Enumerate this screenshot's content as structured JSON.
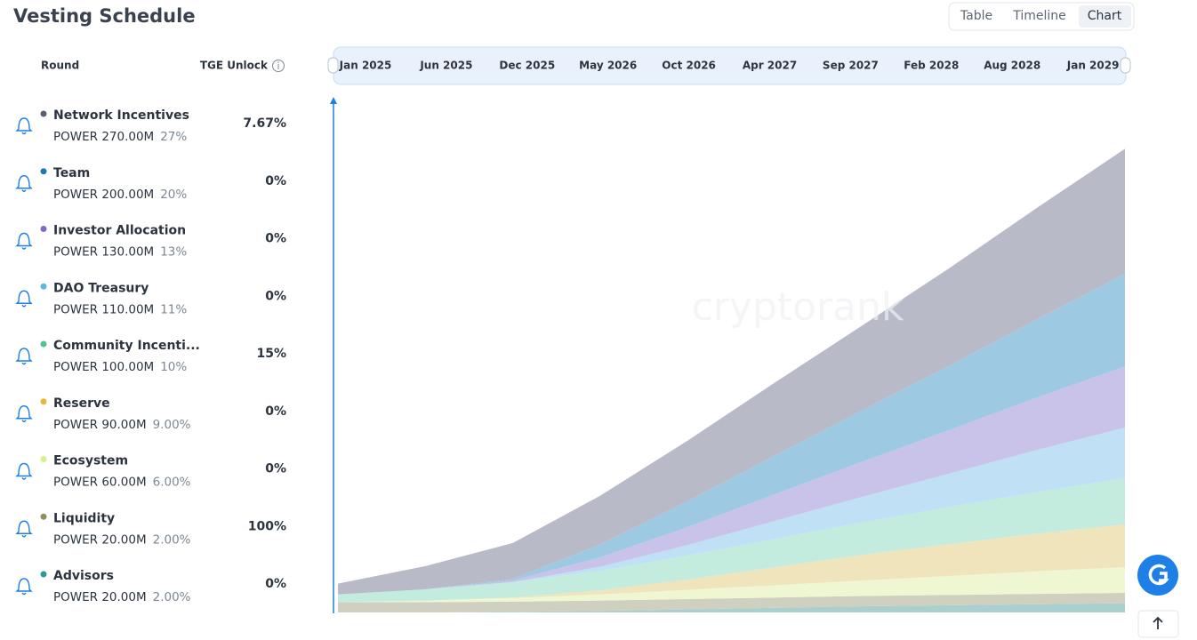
{
  "header": {
    "title": "Vesting Schedule",
    "tabs": [
      "Table",
      "Timeline",
      "Chart"
    ]
  },
  "table": {
    "headers": [
      "Round",
      "TGE Unlock"
    ],
    "rows": [
      {
        "amount": "POWER 270.00M",
        "share": "27%",
        "tge": "7.67%"
      },
      {
        "amount": "POWER 200.00M",
        "share": "20%",
        "tge": "0%"
      },
      {
        "amount": "POWER 130.00M",
        "share": "13%",
        "tge": "0%"
      },
      {
        "amount": "POWER 110.00M",
        "share": "11%",
        "tge": "0%"
      },
      {
        "amount": "POWER 100.00M",
        "share": "10%",
        "tge": "15%"
      },
      {
        "amount": "POWER 90.00M",
        "share": "9.00%",
        "tge": "0%"
      },
      {
        "amount": "POWER 60.00M",
        "share": "6.00%",
        "tge": "0%"
      },
      {
        "amount": "POWER 20.00M",
        "share": "2.00%",
        "tge": "100%"
      },
      {
        "amount": "POWER 20.00M",
        "share": "2.00%",
        "tge": "0%"
      }
    ]
  },
  "chart_data": {
    "type": "stacked-area",
    "categories": [
      "Jan 2025",
      "Jun 2025",
      "Dec 2025",
      "May 2026",
      "Oct 2026",
      "Apr 2027",
      "Sep 2027",
      "Feb 2028",
      "Aug 2028",
      "Jan 2029"
    ],
    "ylim": [
      0,
      1000
    ],
    "series": [
      {
        "name": "Network Incentives",
        "color": "#5a6070",
        "fill": "#b9bac8",
        "values": [
          21,
          45,
          70,
          95,
          118,
          142,
          165,
          190,
          217,
          243
        ]
      },
      {
        "name": "Team",
        "color": "#1f77b4",
        "fill": "#9dc9e3",
        "values": [
          0,
          0,
          3,
          25,
          50,
          75,
          100,
          125,
          152,
          180
        ]
      },
      {
        "name": "Investor Allocation",
        "color": "#7b6bc4",
        "fill": "#c9c3ea",
        "values": [
          0,
          0,
          3,
          18,
          35,
          52,
          68,
          85,
          102,
          119
        ]
      },
      {
        "name": "DAO Treasury",
        "color": "#5bb8e0",
        "fill": "#bfe0f5",
        "values": [
          0,
          0,
          0,
          8,
          20,
          35,
          50,
          65,
          82,
          98
        ]
      },
      {
        "name": "Community Incenti...",
        "color": "#4cc49a",
        "fill": "#c3ecdf",
        "values": [
          15,
          22,
          30,
          38,
          47,
          55,
          63,
          72,
          81,
          90
        ]
      },
      {
        "name": "Reserve",
        "color": "#e6b93c",
        "fill": "#f0e4bd",
        "values": [
          0,
          0,
          1,
          8,
          20,
          35,
          50,
          62,
          73,
          83
        ]
      },
      {
        "name": "Ecosystem",
        "color": "#d8ef8a",
        "fill": "#eef6d2",
        "values": [
          0,
          3,
          7,
          12,
          18,
          24,
          30,
          37,
          44,
          50
        ]
      },
      {
        "name": "Liquidity",
        "color": "#8d9160",
        "fill": "#cfd0c0",
        "values": [
          20,
          20,
          20,
          20,
          20,
          20,
          20,
          20,
          20,
          20
        ]
      },
      {
        "name": "Advisors",
        "color": "#2a9a9a",
        "fill": "#a9cfcf",
        "values": [
          0,
          0,
          1,
          3,
          6,
          9,
          12,
          14,
          16,
          18
        ]
      }
    ]
  }
}
